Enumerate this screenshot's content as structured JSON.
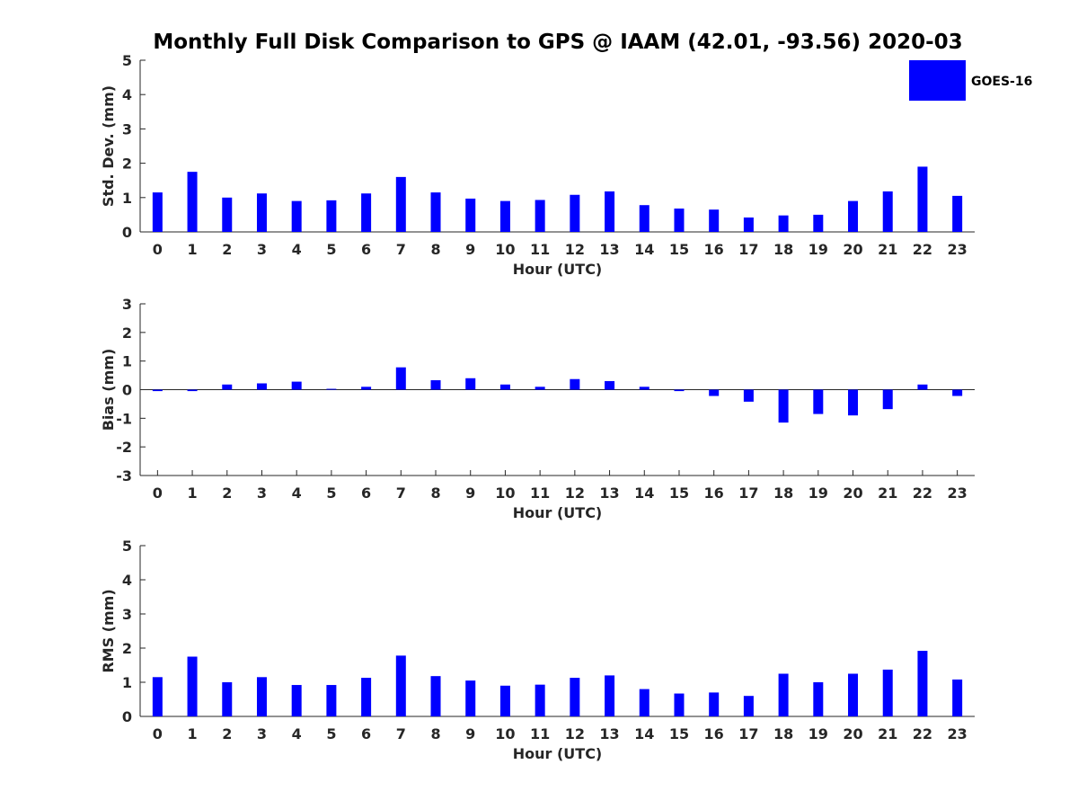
{
  "figure": {
    "title": "Monthly Full Disk Comparison to GPS @ IAAM (42.01, -93.56) 2020-03",
    "legend": {
      "label": "GOES-16",
      "color": "#0000ff",
      "placement": "top-right"
    }
  },
  "chart_data": [
    {
      "type": "bar",
      "name": "std-dev",
      "ylabel": "Std. Dev. (mm)",
      "xlabel": "Hour (UTC)",
      "ylim": [
        0,
        5
      ],
      "yticks": [
        0,
        1,
        2,
        3,
        4,
        5
      ],
      "categories": [
        "0",
        "1",
        "2",
        "3",
        "4",
        "5",
        "6",
        "7",
        "8",
        "9",
        "10",
        "11",
        "12",
        "13",
        "14",
        "15",
        "16",
        "17",
        "18",
        "19",
        "20",
        "21",
        "22",
        "23"
      ],
      "series": [
        {
          "name": "GOES-16",
          "color": "#0000ff",
          "values": [
            1.15,
            1.75,
            1.0,
            1.12,
            0.9,
            0.92,
            1.12,
            1.6,
            1.15,
            0.97,
            0.9,
            0.93,
            1.08,
            1.18,
            0.78,
            0.68,
            0.65,
            0.42,
            0.48,
            0.5,
            0.9,
            1.18,
            1.9,
            1.05
          ]
        }
      ]
    },
    {
      "type": "bar",
      "name": "bias",
      "ylabel": "Bias (mm)",
      "xlabel": "Hour (UTC)",
      "ylim": [
        -3,
        3
      ],
      "yticks": [
        -3,
        -2,
        -1,
        0,
        1,
        2,
        3
      ],
      "zero_line": true,
      "categories": [
        "0",
        "1",
        "2",
        "3",
        "4",
        "5",
        "6",
        "7",
        "8",
        "9",
        "10",
        "11",
        "12",
        "13",
        "14",
        "15",
        "16",
        "17",
        "18",
        "19",
        "20",
        "21",
        "22",
        "23"
      ],
      "series": [
        {
          "name": "GOES-16",
          "color": "#0000ff",
          "values": [
            -0.05,
            -0.05,
            0.18,
            0.22,
            0.28,
            0.03,
            0.1,
            0.78,
            0.33,
            0.4,
            0.18,
            0.1,
            0.37,
            0.3,
            0.1,
            -0.05,
            -0.22,
            -0.42,
            -1.15,
            -0.85,
            -0.9,
            -0.68,
            0.18,
            -0.22
          ]
        }
      ]
    },
    {
      "type": "bar",
      "name": "rms",
      "ylabel": "RMS (mm)",
      "xlabel": "Hour (UTC)",
      "ylim": [
        0,
        5
      ],
      "yticks": [
        0,
        1,
        2,
        3,
        4,
        5
      ],
      "categories": [
        "0",
        "1",
        "2",
        "3",
        "4",
        "5",
        "6",
        "7",
        "8",
        "9",
        "10",
        "11",
        "12",
        "13",
        "14",
        "15",
        "16",
        "17",
        "18",
        "19",
        "20",
        "21",
        "22",
        "23"
      ],
      "series": [
        {
          "name": "GOES-16",
          "color": "#0000ff",
          "values": [
            1.15,
            1.75,
            1.0,
            1.15,
            0.92,
            0.92,
            1.13,
            1.78,
            1.18,
            1.05,
            0.9,
            0.93,
            1.13,
            1.2,
            0.8,
            0.67,
            0.7,
            0.6,
            1.25,
            1.0,
            1.25,
            1.37,
            1.92,
            1.08
          ]
        }
      ]
    }
  ]
}
